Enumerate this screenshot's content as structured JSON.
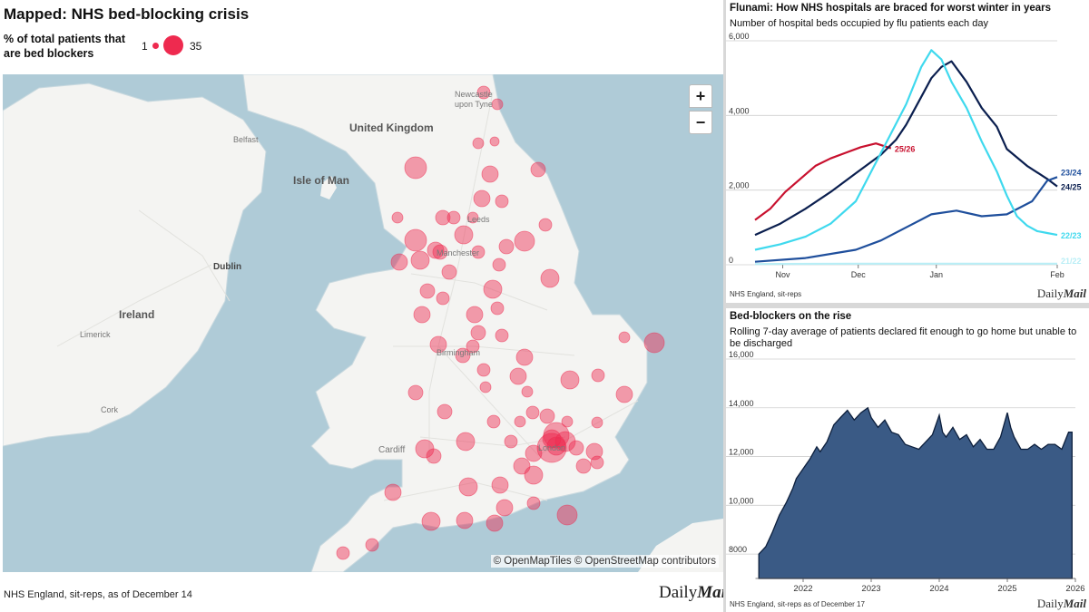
{
  "map": {
    "title": "Mapped: NHS bed-blocking crisis",
    "legend": {
      "label": "% of total patients that are bed blockers",
      "min": "1",
      "max": "35",
      "color": "#ee2a4f"
    },
    "zoom_in": "+",
    "zoom_out": "−",
    "attribution": "© OpenMapTiles © OpenStreetMap contributors",
    "source": "NHS England, sit-reps, as of December 14",
    "brand_plain": "Daily",
    "brand_bold": "Mail",
    "place_labels": [
      "United Kingdom",
      "Isle of Man",
      "Belfast",
      "Dublin",
      "Ireland",
      "Limerick",
      "Cork",
      "Cardiff",
      "Newcastle upon Tyne",
      "Leeds",
      "Manchester",
      "Birmingham",
      "London"
    ],
    "colors": {
      "sea": "#afcbd7",
      "land": "#f4f4f2",
      "bubble": "#ee2a4f"
    }
  },
  "chart_data": [
    {
      "type": "line",
      "title": "Flunami: How NHS hospitals are braced for worst winter in years",
      "subtitle": "Number of hospital beds occupied by flu patients each day",
      "x_ticks": [
        "Nov",
        "Dec",
        "Jan",
        "Feb"
      ],
      "y_ticks": [
        "6,000",
        "4,000",
        "2,000",
        "0"
      ],
      "ylim": [
        0,
        6000
      ],
      "x_days": [
        0,
        120
      ],
      "x_note": "days from 20 Oct",
      "series": [
        {
          "name": "25/26",
          "color": "#c8102e",
          "x": [
            0,
            6,
            12,
            18,
            24,
            30,
            36,
            42,
            48,
            54
          ],
          "y": [
            1200,
            1500,
            1950,
            2300,
            2650,
            2850,
            3000,
            3150,
            3250,
            3120
          ]
        },
        {
          "name": "24/25",
          "color": "#0b1f4f",
          "x": [
            0,
            10,
            20,
            30,
            40,
            50,
            56,
            60,
            62,
            66,
            70,
            74,
            78,
            84,
            90,
            96,
            100,
            108,
            116,
            120
          ],
          "y": [
            800,
            1100,
            1500,
            1950,
            2450,
            2950,
            3350,
            3750,
            4000,
            4500,
            5000,
            5300,
            5450,
            4900,
            4200,
            3700,
            3100,
            2650,
            2300,
            2100
          ]
        },
        {
          "name": "23/24",
          "color": "#1f4f9c",
          "x": [
            0,
            20,
            40,
            50,
            60,
            70,
            80,
            90,
            100,
            110,
            116,
            120
          ],
          "y": [
            80,
            180,
            400,
            650,
            1000,
            1350,
            1450,
            1300,
            1350,
            1700,
            2250,
            2350
          ]
        },
        {
          "name": "22/23",
          "color": "#3fd9ee",
          "x": [
            0,
            10,
            20,
            30,
            40,
            50,
            60,
            66,
            70,
            74,
            78,
            84,
            90,
            96,
            100,
            104,
            108,
            112,
            116,
            120
          ],
          "y": [
            400,
            550,
            750,
            1100,
            1700,
            3000,
            4300,
            5300,
            5750,
            5500,
            4900,
            4200,
            3300,
            2500,
            1850,
            1300,
            1050,
            900,
            850,
            800
          ]
        },
        {
          "name": "21/22",
          "color": "#b9eef6",
          "x": [
            0,
            40,
            80,
            120
          ],
          "y": [
            20,
            30,
            30,
            30
          ]
        }
      ],
      "source": "NHS England, sit-reps",
      "brand_plain": "Daily",
      "brand_bold": "Mail"
    },
    {
      "type": "area",
      "title": "Bed-blockers on the rise",
      "subtitle": "Rolling 7-day average of patients declared fit enough to go home but unable to be discharged",
      "x_ticks": [
        "2022",
        "2023",
        "2024",
        "2025",
        "2026"
      ],
      "y_ticks": [
        "16,000",
        "14,000",
        "12,000",
        "10,000",
        "8000"
      ],
      "ylim": [
        7000,
        16000
      ],
      "xlim": [
        2021.0,
        2026.0
      ],
      "color": "#3a5a85",
      "x": [
        2021.35,
        2021.45,
        2021.55,
        2021.65,
        2021.75,
        2021.85,
        2021.9,
        2022.0,
        2022.1,
        2022.2,
        2022.25,
        2022.35,
        2022.45,
        2022.55,
        2022.65,
        2022.75,
        2022.85,
        2022.95,
        2023.0,
        2023.1,
        2023.2,
        2023.3,
        2023.4,
        2023.5,
        2023.6,
        2023.7,
        2023.8,
        2023.9,
        2024.0,
        2024.05,
        2024.1,
        2024.2,
        2024.3,
        2024.4,
        2024.5,
        2024.6,
        2024.7,
        2024.8,
        2024.9,
        2025.0,
        2025.05,
        2025.1,
        2025.2,
        2025.3,
        2025.4,
        2025.5,
        2025.6,
        2025.7,
        2025.8,
        2025.9,
        2025.95
      ],
      "y": [
        8000,
        8300,
        8900,
        9600,
        10100,
        10700,
        11100,
        11500,
        11900,
        12400,
        12200,
        12600,
        13300,
        13600,
        13900,
        13500,
        13800,
        14000,
        13600,
        13200,
        13500,
        13000,
        12900,
        12500,
        12400,
        12300,
        12600,
        12900,
        13700,
        13000,
        12800,
        13200,
        12700,
        12900,
        12400,
        12700,
        12300,
        12300,
        12800,
        13800,
        13200,
        12800,
        12300,
        12300,
        12500,
        12300,
        12500,
        12500,
        12300,
        13000,
        13000
      ],
      "source": "NHS England, sit-reps as of December 17",
      "brand_plain": "Daily",
      "brand_bold": "Mail"
    }
  ]
}
